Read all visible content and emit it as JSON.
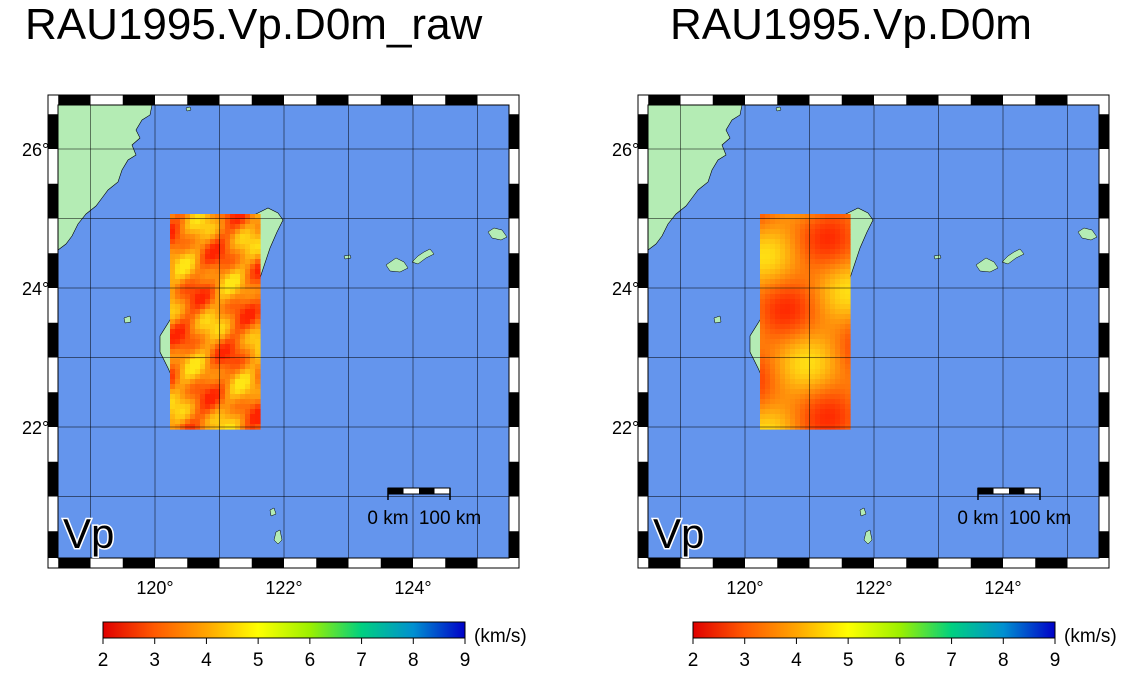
{
  "panels": [
    {
      "title": "RAU1995.Vp.D0m_raw",
      "variant": "raw",
      "map_label": "Vp",
      "scalebar": {
        "start_label": "0 km",
        "end_label": "100 km"
      },
      "lat_ticks": [
        "26°",
        "24°",
        "22°"
      ],
      "lon_ticks": [
        "120°",
        "122°",
        "124°"
      ],
      "colorbar": {
        "unit": "(km/s)",
        "ticks": [
          "2",
          "3",
          "4",
          "5",
          "6",
          "7",
          "8",
          "9"
        ]
      }
    },
    {
      "title": "RAU1995.Vp.D0m",
      "variant": "smooth",
      "map_label": "Vp",
      "scalebar": {
        "start_label": "0 km",
        "end_label": "100 km"
      },
      "lat_ticks": [
        "26°",
        "24°",
        "22°"
      ],
      "lon_ticks": [
        "120°",
        "122°",
        "124°"
      ],
      "colorbar": {
        "unit": "(km/s)",
        "ticks": [
          "2",
          "3",
          "4",
          "5",
          "6",
          "7",
          "8",
          "9"
        ]
      }
    }
  ],
  "colors": {
    "ocean": "#6495ed",
    "land": "#b4ecb4",
    "colorbar_stops": [
      "#e00000",
      "#ff5a00",
      "#ffa500",
      "#ffff00",
      "#9cf000",
      "#00d080",
      "#0090d0",
      "#0000c8"
    ]
  }
}
